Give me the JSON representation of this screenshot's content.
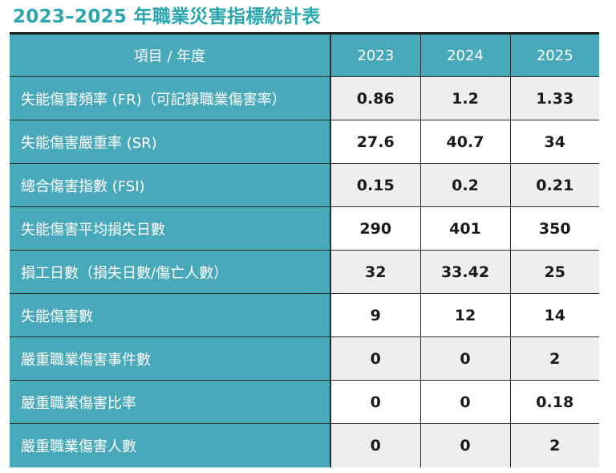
{
  "title": "2023–2025 年職業災害指標統計表",
  "header": {
    "label": "項目 / 年度",
    "years": [
      "2023",
      "2024",
      "2025"
    ]
  },
  "rows": [
    {
      "label": "失能傷害頻率 (FR)（可記錄職業傷害率）",
      "values": [
        "0.86",
        "1.2",
        "1.33"
      ]
    },
    {
      "label": "失能傷害嚴重率 (SR)",
      "values": [
        "27.6",
        "40.7",
        "34"
      ]
    },
    {
      "label": "總合傷害指數 (FSI)",
      "values": [
        "0.15",
        "0.2",
        "0.21"
      ]
    },
    {
      "label": "失能傷害平均損失日數",
      "values": [
        "290",
        "401",
        "350"
      ]
    },
    {
      "label": "損工日數（損失日數/傷亡人數）",
      "values": [
        "32",
        "33.42",
        "25"
      ]
    },
    {
      "label": "失能傷害數",
      "values": [
        "9",
        "12",
        "14"
      ]
    },
    {
      "label": "嚴重職業傷害事件數",
      "values": [
        "0",
        "0",
        "2"
      ]
    },
    {
      "label": "嚴重職業傷害比率",
      "values": [
        "0",
        "0",
        "0.18"
      ]
    },
    {
      "label": "嚴重職業傷害人數",
      "values": [
        "0",
        "0",
        "2"
      ]
    }
  ],
  "colors": {
    "title": "#2aa6ae",
    "header_bg": "#48a9bb",
    "row_shade": "#eeeeee",
    "border": "#2c2c2c"
  }
}
